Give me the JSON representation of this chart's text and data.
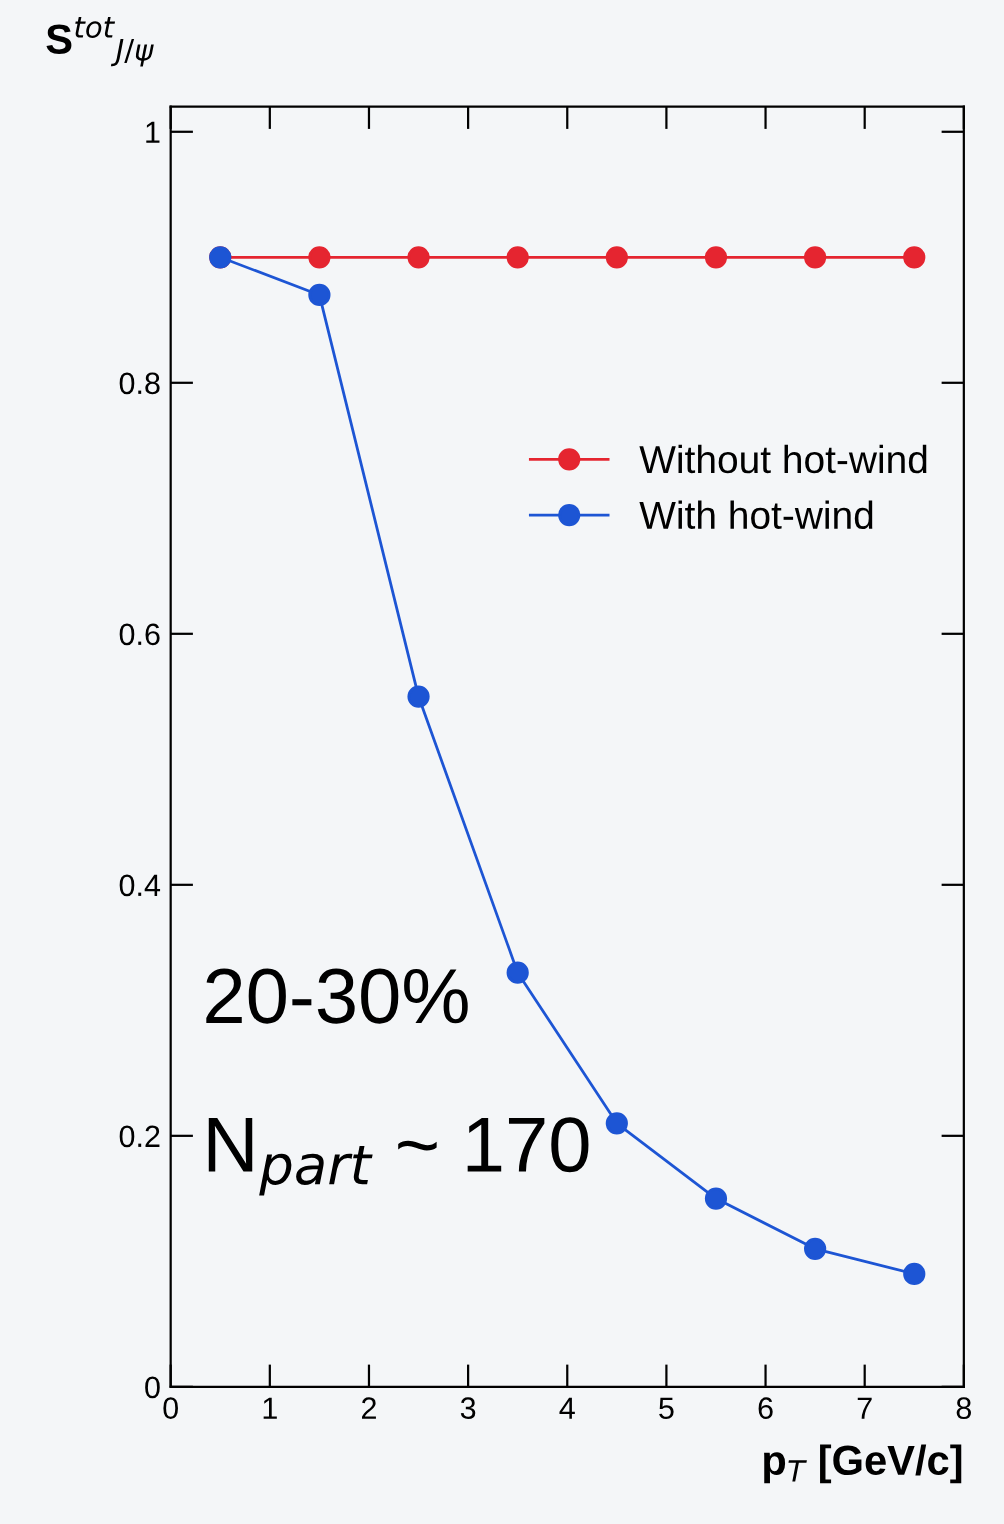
{
  "chart_data": {
    "type": "line",
    "xlabel": "p$_{T}$ [GeV/c]",
    "ylabel": "S$^{tot}$$_{J/ψ}$",
    "x": [
      0.5,
      1.5,
      2.5,
      3.5,
      4.5,
      5.5,
      6.5,
      7.5
    ],
    "series": [
      {
        "name": "Without hot-wind",
        "color": "#e52530",
        "values": [
          0.9,
          0.9,
          0.9,
          0.9,
          0.9,
          0.9,
          0.9,
          0.9
        ]
      },
      {
        "name": "With hot-wind",
        "color": "#1d55d4",
        "values": [
          0.9,
          0.87,
          0.55,
          0.33,
          0.21,
          0.15,
          0.11,
          0.09
        ]
      }
    ],
    "xlim": [
      0,
      8
    ],
    "xticks": [
      0,
      1,
      2,
      3,
      4,
      5,
      6,
      7,
      8
    ],
    "ylim": [
      0,
      1.02
    ],
    "yticks": [
      0,
      0.2,
      0.4,
      0.6,
      0.8,
      1
    ],
    "annotations": [
      "20-30%",
      "N$_{part}$ ~ 170"
    ],
    "marker": "circle",
    "legend": "right",
    "grid": false
  }
}
